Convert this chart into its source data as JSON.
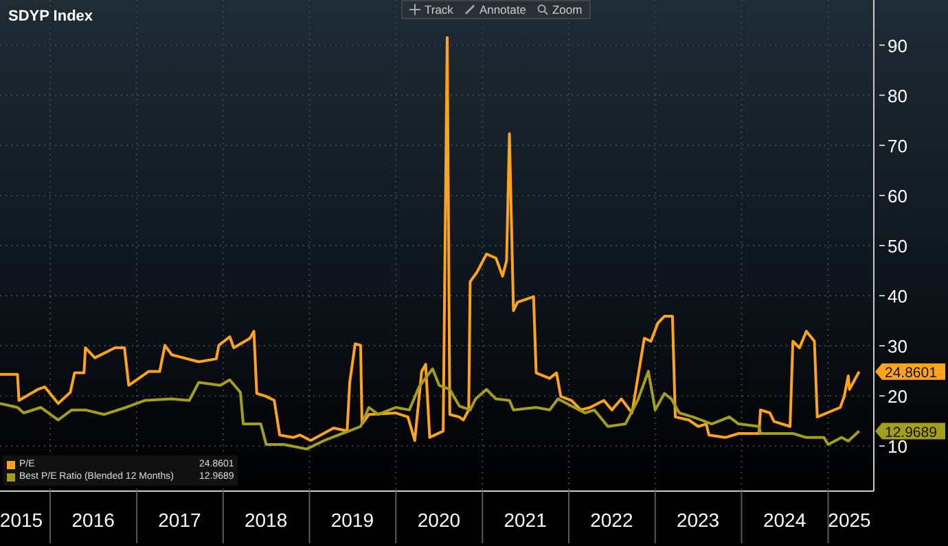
{
  "chart_data": {
    "type": "line",
    "title": "SDYP Index",
    "annotations": [
      "Track",
      "Annotate",
      "Zoom"
    ],
    "xlim": [
      "2015-06-03",
      "2025-07-13"
    ],
    "xticks": [
      {
        "value": "2015-09-01",
        "label": "2015"
      },
      {
        "value": "2016-01-01",
        "label": null
      },
      {
        "value": "2016-07-01",
        "label": "2016"
      },
      {
        "value": "2017-01-01",
        "label": null
      },
      {
        "value": "2017-07-01",
        "label": "2017"
      },
      {
        "value": "2018-01-01",
        "label": null
      },
      {
        "value": "2018-07-01",
        "label": "2018"
      },
      {
        "value": "2019-01-01",
        "label": null
      },
      {
        "value": "2019-07-01",
        "label": "2019"
      },
      {
        "value": "2020-01-01",
        "label": null
      },
      {
        "value": "2020-07-01",
        "label": "2020"
      },
      {
        "value": "2021-01-01",
        "label": null
      },
      {
        "value": "2021-07-01",
        "label": "2021"
      },
      {
        "value": "2022-01-01",
        "label": null
      },
      {
        "value": "2022-07-01",
        "label": "2022"
      },
      {
        "value": "2023-01-01",
        "label": null
      },
      {
        "value": "2023-07-01",
        "label": "2023"
      },
      {
        "value": "2024-01-01",
        "label": null
      },
      {
        "value": "2024-07-01",
        "label": "2024"
      },
      {
        "value": "2025-01-01",
        "label": null
      },
      {
        "value": "2025-04-01",
        "label": "2025"
      }
    ],
    "ylim": [
      1,
      99
    ],
    "yticks": [
      10,
      20,
      30,
      40,
      50,
      60,
      70,
      80,
      90
    ],
    "grid": true,
    "legend": "bottom left",
    "marker": "none",
    "line_style": "solid",
    "series": [
      {
        "name": "P/E",
        "color": "#ffa31a",
        "x": [
          "2015-06-03",
          "2015-08-16",
          "2015-08-22",
          "2015-11-10",
          "2015-12-09",
          "2016-02-04",
          "2016-03-26",
          "2016-04-13",
          "2016-05-23",
          "2016-05-29",
          "2016-07-08",
          "2016-10-01",
          "2016-11-10",
          "2016-11-28",
          "2017-02-21",
          "2017-04-08",
          "2017-04-30",
          "2017-05-29",
          "2017-09-20",
          "2017-12-03",
          "2017-12-14",
          "2018-01-29",
          "2018-02-15",
          "2018-04-24",
          "2018-05-11",
          "2018-05-23",
          "2018-07-02",
          "2018-08-05",
          "2018-08-28",
          "2018-10-24",
          "2018-11-22",
          "2019-01-06",
          "2019-04-13",
          "2019-06-09",
          "2019-06-20",
          "2019-07-13",
          "2019-08-05",
          "2019-08-11",
          "2019-09-09",
          "2020-01-01",
          "2020-02-21",
          "2020-03-21",
          "2020-04-19",
          "2020-05-06",
          "2020-05-23",
          "2020-07-19",
          "2020-08-05",
          "2020-08-16",
          "2020-09-25",
          "2020-10-12",
          "2020-11-04",
          "2020-11-10",
          "2020-12-09",
          "2021-01-18",
          "2021-02-27",
          "2021-03-27",
          "2021-04-13",
          "2021-04-25",
          "2021-05-12",
          "2021-05-29",
          "2021-08-05",
          "2021-08-16",
          "2021-10-12",
          "2021-11-10",
          "2021-11-28",
          "2022-01-12",
          "2022-02-21",
          "2022-04-01",
          "2022-05-29",
          "2022-07-02",
          "2022-08-11",
          "2022-09-25",
          "2022-11-16",
          "2022-12-14",
          "2023-01-12",
          "2023-02-09",
          "2023-03-15",
          "2023-03-27",
          "2023-05-23",
          "2023-07-02",
          "2023-08-05",
          "2023-08-16",
          "2023-10-24",
          "2023-12-20",
          "2024-03-15",
          "2024-03-21",
          "2024-04-30",
          "2024-05-17",
          "2024-07-24",
          "2024-08-05",
          "2024-09-02",
          "2024-10-01",
          "2024-11-04",
          "2024-11-16",
          "2025-02-21",
          "2025-03-10",
          "2025-03-27",
          "2025-04-01",
          "2025-05-12"
        ],
        "values": [
          24.3,
          24.3,
          19.1,
          21.3,
          21.8,
          18.5,
          20.7,
          24.6,
          24.6,
          29.6,
          27.6,
          29.6,
          29.6,
          22.1,
          24.9,
          24.9,
          30.1,
          28.2,
          26.8,
          27.4,
          30.1,
          31.8,
          29.6,
          31.5,
          32.9,
          20.5,
          19.9,
          19.1,
          12.2,
          11.7,
          12.2,
          11.1,
          13.6,
          13.0,
          22.7,
          30.4,
          30.1,
          14.4,
          16.3,
          16.6,
          15.8,
          11.1,
          24.9,
          26.3,
          11.7,
          13.0,
          91.5,
          16.3,
          15.8,
          15.2,
          17.2,
          42.8,
          44.7,
          48.3,
          47.5,
          43.9,
          47.0,
          72.3,
          37.0,
          38.7,
          39.8,
          24.6,
          23.5,
          24.6,
          19.9,
          19.1,
          17.2,
          17.7,
          19.1,
          17.2,
          19.4,
          16.6,
          31.5,
          30.9,
          34.5,
          35.9,
          35.9,
          15.8,
          15.2,
          13.9,
          14.4,
          12.2,
          11.7,
          12.5,
          12.5,
          17.2,
          16.6,
          14.9,
          13.9,
          30.9,
          29.6,
          32.9,
          30.9,
          15.8,
          17.7,
          19.9,
          24.0,
          21.3,
          24.8601
        ],
        "value_labels": [
          null,
          null,
          null,
          null,
          null,
          null,
          null,
          null,
          null,
          null,
          null,
          null,
          null,
          null,
          null,
          null,
          null,
          null,
          null,
          null,
          null,
          null,
          null,
          null,
          null,
          null,
          null,
          null,
          null,
          null,
          null,
          null,
          null,
          null,
          null,
          null,
          null,
          null,
          null,
          null,
          null,
          null,
          null,
          null,
          null,
          null,
          null,
          null,
          null,
          null,
          null,
          null,
          null,
          null,
          null,
          null,
          null,
          null,
          null,
          null,
          null,
          null,
          null,
          null,
          null,
          null,
          null,
          null,
          null,
          null,
          null,
          null,
          null,
          null,
          null,
          null,
          null,
          null,
          null,
          null,
          null,
          null,
          null,
          null,
          null,
          null,
          null,
          null,
          null,
          null,
          null,
          null,
          null,
          null,
          null,
          null,
          null,
          null,
          "24.8601"
        ]
      },
      {
        "name": "Best P/E Ratio (Blended 12 Months)",
        "color": "#a39f1c",
        "x": [
          "2015-06-03",
          "2015-08-16",
          "2015-09-11",
          "2015-11-22",
          "2016-02-04",
          "2016-04-01",
          "2016-05-29",
          "2016-08-16",
          "2016-11-16",
          "2017-02-04",
          "2017-05-29",
          "2017-08-11",
          "2017-09-20",
          "2017-12-20",
          "2018-01-29",
          "2018-03-15",
          "2018-03-27",
          "2018-06-09",
          "2018-07-02",
          "2018-09-14",
          "2018-12-20",
          "2019-03-04",
          "2019-08-05",
          "2019-09-09",
          "2019-10-18",
          "2020-01-01",
          "2020-02-27",
          "2020-04-08",
          "2020-06-04",
          "2020-07-02",
          "2020-08-16",
          "2020-09-25",
          "2020-11-10",
          "2020-12-03",
          "2021-01-18",
          "2021-02-27",
          "2021-04-25",
          "2021-05-12",
          "2021-08-16",
          "2021-10-12",
          "2021-11-16",
          "2022-01-12",
          "2022-03-10",
          "2022-04-19",
          "2022-06-15",
          "2022-08-28",
          "2022-10-19",
          "2022-12-03",
          "2023-01-01",
          "2023-02-09",
          "2023-03-10",
          "2023-04-13",
          "2023-06-09",
          "2023-08-28",
          "2023-11-10",
          "2023-12-20",
          "2024-03-15",
          "2024-03-21",
          "2024-08-05",
          "2024-10-01",
          "2024-12-14",
          "2025-01-01",
          "2025-02-27",
          "2025-03-27",
          "2025-05-12"
        ],
        "values": [
          18.5,
          17.7,
          16.6,
          17.7,
          15.2,
          17.2,
          17.2,
          16.3,
          17.7,
          19.1,
          19.4,
          19.1,
          22.7,
          22.1,
          23.2,
          20.7,
          14.4,
          14.4,
          10.3,
          10.3,
          9.4,
          11.1,
          13.9,
          17.7,
          16.3,
          17.7,
          17.2,
          21.8,
          25.4,
          22.1,
          21.3,
          18.0,
          17.2,
          19.4,
          21.3,
          19.4,
          19.1,
          17.2,
          17.7,
          17.2,
          19.4,
          18.0,
          16.6,
          17.2,
          13.9,
          14.4,
          19.1,
          24.9,
          17.2,
          20.5,
          19.4,
          16.6,
          15.8,
          14.4,
          15.8,
          14.4,
          13.9,
          12.5,
          12.5,
          11.7,
          11.7,
          10.3,
          11.7,
          11.0,
          12.9689
        ],
        "value_labels": [
          null,
          null,
          null,
          null,
          null,
          null,
          null,
          null,
          null,
          null,
          null,
          null,
          null,
          null,
          null,
          null,
          null,
          null,
          null,
          null,
          null,
          null,
          null,
          null,
          null,
          null,
          null,
          null,
          null,
          null,
          null,
          null,
          null,
          null,
          null,
          null,
          null,
          null,
          null,
          null,
          null,
          null,
          null,
          null,
          null,
          null,
          null,
          null,
          null,
          null,
          null,
          null,
          null,
          null,
          null,
          null,
          null,
          null,
          null,
          null,
          null,
          null,
          null,
          null,
          "12.9689"
        ]
      }
    ]
  }
}
